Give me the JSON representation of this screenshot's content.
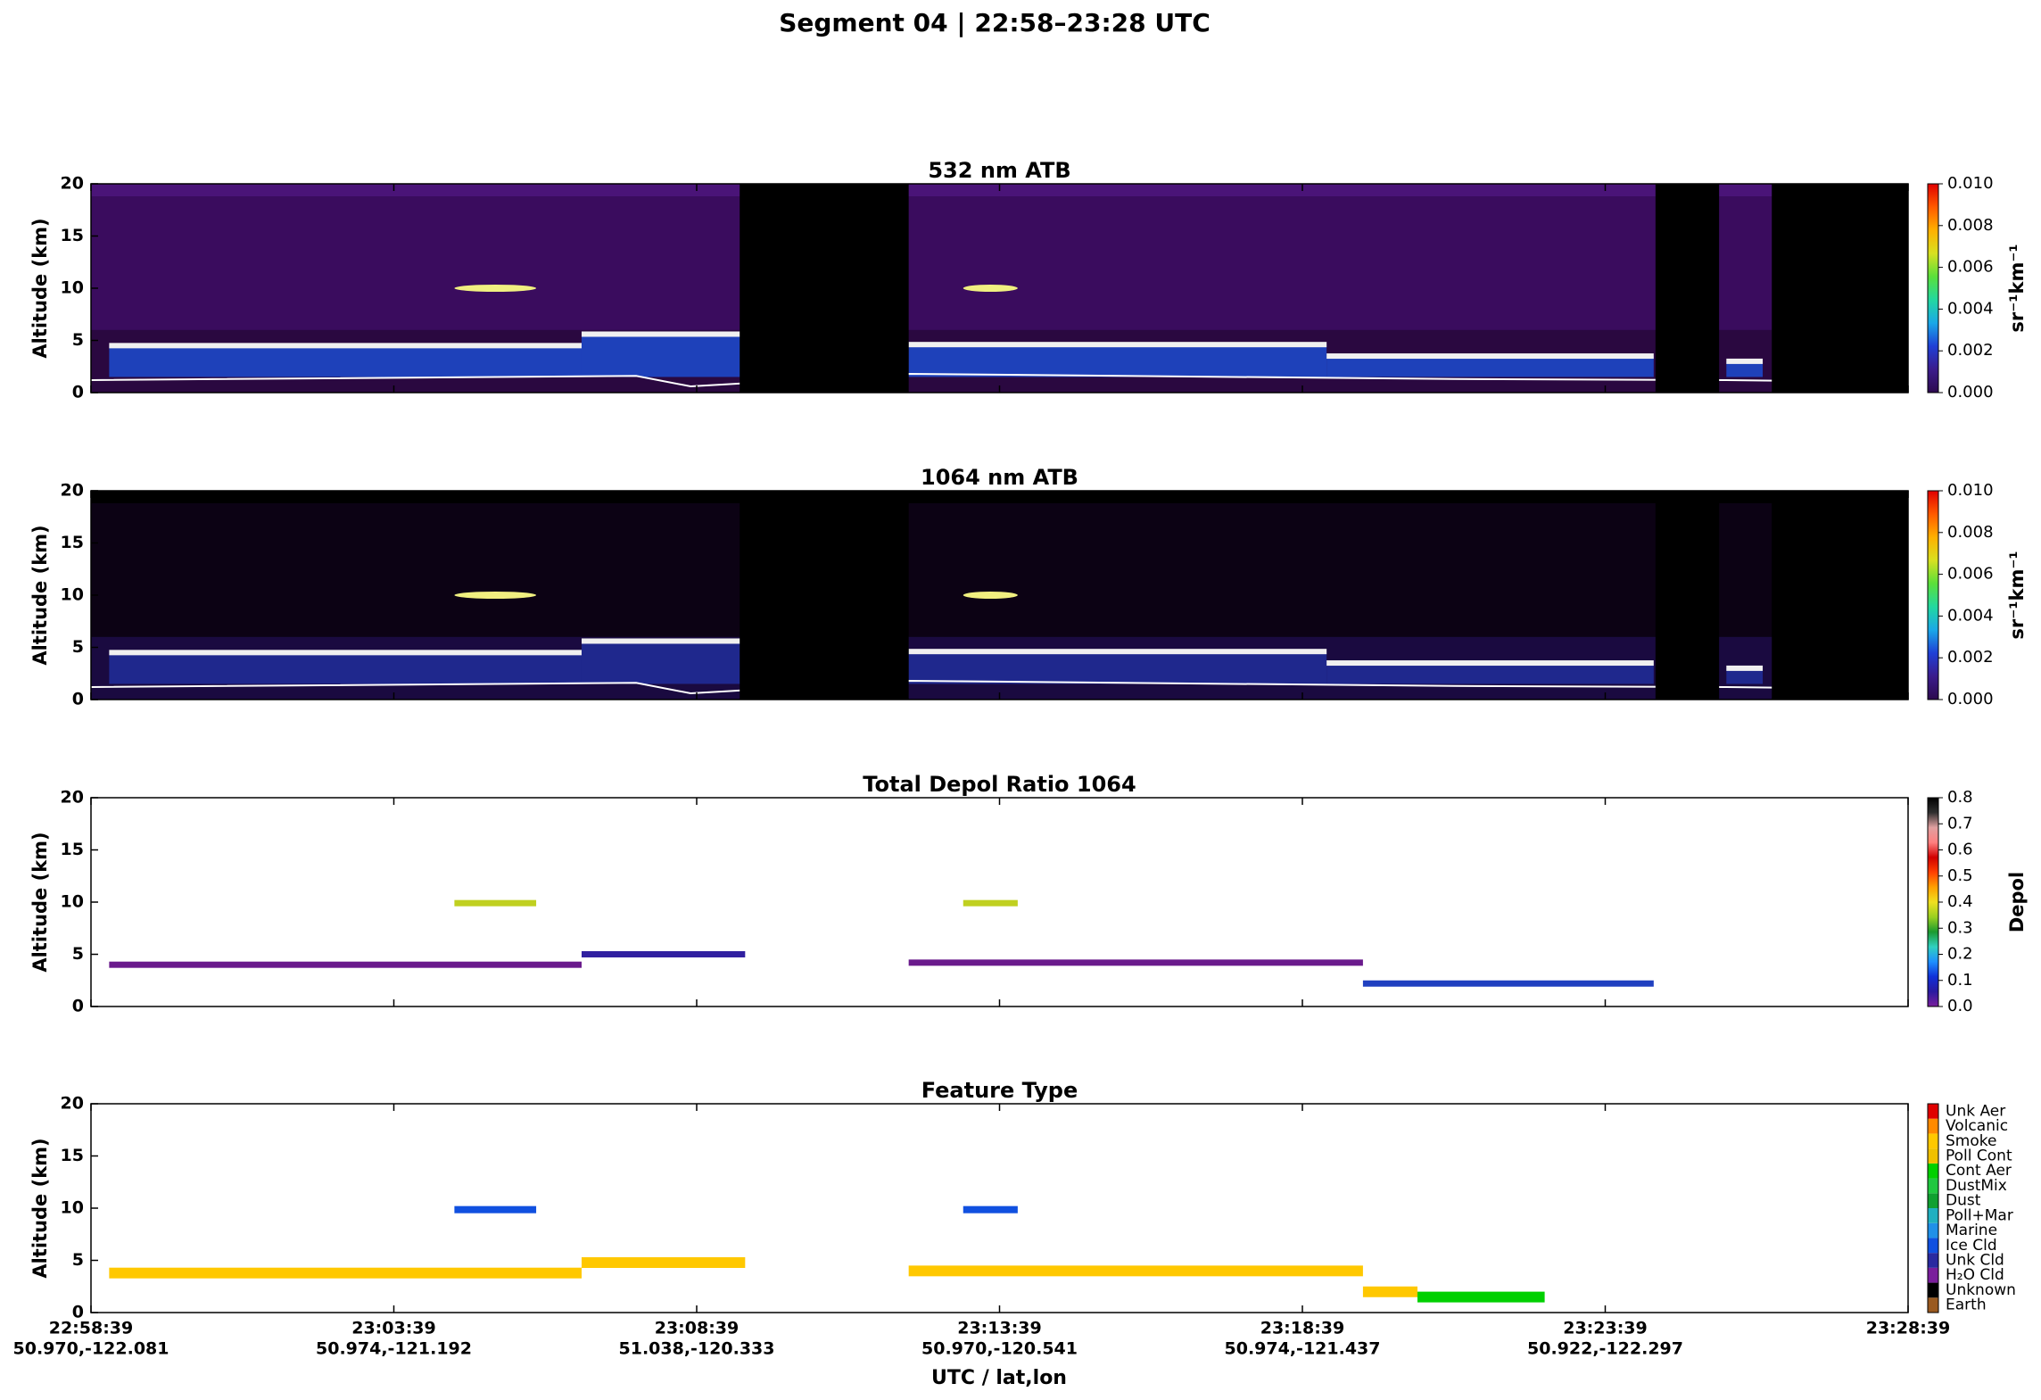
{
  "title": "Segment 04  |  22:58–23:28 UTC",
  "xaxis": {
    "label": "UTC / lat,lon",
    "ticks": [
      {
        "time": "22:58:39",
        "latlon": "50.970,-122.081"
      },
      {
        "time": "23:03:39",
        "latlon": "50.974,-121.192"
      },
      {
        "time": "23:08:39",
        "latlon": "51.038,-120.333"
      },
      {
        "time": "23:13:39",
        "latlon": "50.970,-120.541"
      },
      {
        "time": "23:18:39",
        "latlon": "50.974,-121.437"
      },
      {
        "time": "23:23:39",
        "latlon": "50.922,-122.297"
      },
      {
        "time": "23:28:39"
      }
    ]
  },
  "chart_data": [
    {
      "type": "heatmap",
      "title": "532 nm ATB",
      "ylabel": "Altitude (km)",
      "ylim": [
        0,
        20
      ],
      "yticks": [
        0,
        5,
        10,
        15,
        20
      ],
      "colorbar": {
        "label": "sr⁻¹km⁻¹",
        "lim": [
          0,
          0.01
        ],
        "ticks": [
          {
            "value": 0,
            "label": "0.000"
          },
          {
            "value": 0.002,
            "label": "0.002"
          },
          {
            "value": 0.004,
            "label": "0.004"
          },
          {
            "value": 0.006,
            "label": "0.006"
          },
          {
            "value": 0.008,
            "label": "0.008"
          },
          {
            "value": 0.01,
            "label": "0.010"
          }
        ],
        "colors": [
          "#2d0a4e",
          "#3b1c8c",
          "#1f3fd6",
          "#1aa8e8",
          "#22d8a0",
          "#5ae03a",
          "#d8e020",
          "#ffb000",
          "#ff5a00",
          "#e00000"
        ]
      }
    },
    {
      "type": "heatmap",
      "title": "1064 nm ATB",
      "ylabel": "Altitude (km)",
      "ylim": [
        0,
        20
      ],
      "yticks": [
        0,
        5,
        10,
        15,
        20
      ],
      "colorbar": {
        "label": "sr⁻¹km⁻¹",
        "lim": [
          0,
          0.01
        ],
        "ticks": [
          {
            "value": 0,
            "label": "0.000"
          },
          {
            "value": 0.002,
            "label": "0.002"
          },
          {
            "value": 0.004,
            "label": "0.004"
          },
          {
            "value": 0.006,
            "label": "0.006"
          },
          {
            "value": 0.008,
            "label": "0.008"
          },
          {
            "value": 0.01,
            "label": "0.010"
          }
        ],
        "colors": [
          "#2d0a4e",
          "#3b1c8c",
          "#1f3fd6",
          "#1aa8e8",
          "#22d8a0",
          "#5ae03a",
          "#d8e020",
          "#ffb000",
          "#ff5a00",
          "#e00000"
        ]
      }
    },
    {
      "type": "heatmap",
      "title": "Total Depol Ratio 1064",
      "ylabel": "Altitude (km)",
      "ylim": [
        0,
        20
      ],
      "yticks": [
        0,
        5,
        10,
        15,
        20
      ],
      "colorbar": {
        "label": "Depol",
        "lim": [
          0,
          0.8
        ],
        "ticks": [
          {
            "value": 0,
            "label": "0.0"
          },
          {
            "value": 0.1,
            "label": "0.1"
          },
          {
            "value": 0.2,
            "label": "0.2"
          },
          {
            "value": 0.3,
            "label": "0.3"
          },
          {
            "value": 0.4,
            "label": "0.4"
          },
          {
            "value": 0.5,
            "label": "0.5"
          },
          {
            "value": 0.6,
            "label": "0.6"
          },
          {
            "value": 0.7,
            "label": "0.7"
          },
          {
            "value": 0.8,
            "label": "0.8"
          }
        ],
        "colors": [
          "#7a1e9c",
          "#2a1aa0",
          "#1030d8",
          "#1e90ff",
          "#30d0c0",
          "#1a9a30",
          "#9ad020",
          "#f0e020",
          "#ffa000",
          "#ff4000",
          "#d00000",
          "#ff8080",
          "#e0a0a0",
          "#303030",
          "#000000"
        ]
      }
    },
    {
      "type": "heatmap",
      "title": "Feature Type",
      "ylabel": "Altitude (km)",
      "ylim": [
        0,
        20
      ],
      "yticks": [
        0,
        5,
        10,
        15,
        20
      ],
      "colorbar": {
        "classes": [
          "Earth",
          "Unknown",
          "H₂O Cld",
          "Unk Cld",
          "Ice Cld",
          "Marine",
          "Poll+Mar",
          "Dust",
          "DustMix",
          "Cont Aer",
          "Poll Cont",
          "Smoke",
          "Volcanic",
          "Unk Aer"
        ],
        "colors": [
          "#9a5a20",
          "#000000",
          "#7a1e9c",
          "#2a2aa0",
          "#1050e0",
          "#2090e8",
          "#20b0c0",
          "#10a030",
          "#20c840",
          "#00d000",
          "#f0c000",
          "#ffc800",
          "#ff8a00",
          "#e00000"
        ]
      }
    }
  ]
}
